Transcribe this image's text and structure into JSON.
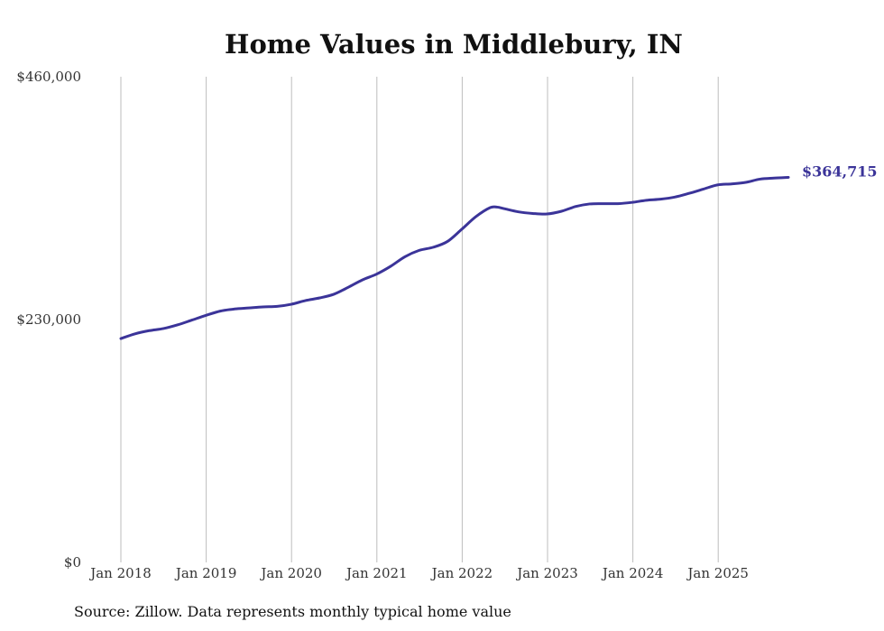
{
  "chart_data": {
    "type": "line",
    "title": "Home Values in Middlebury, IN",
    "xlabel": "",
    "ylabel": "",
    "ylim": [
      0,
      460000
    ],
    "y_ticks": [
      0,
      230000,
      460000
    ],
    "y_tick_labels": [
      "$0",
      "$230,000",
      "$460,000"
    ],
    "x_ticks": [
      2018,
      2019,
      2020,
      2021,
      2022,
      2023,
      2024,
      2025
    ],
    "x_tick_labels": [
      "Jan 2018",
      "Jan 2019",
      "Jan 2020",
      "Jan 2021",
      "Jan 2022",
      "Jan 2023",
      "Jan 2024",
      "Jan 2025"
    ],
    "xlim": [
      2018,
      2025.8333
    ],
    "grid": "vertical",
    "legend": "none",
    "series": [
      {
        "name": "Typical home value",
        "color": "#3b3499",
        "x": [
          2018.0,
          2018.1667,
          2018.3333,
          2018.5,
          2018.6667,
          2018.8333,
          2019.0,
          2019.1667,
          2019.3333,
          2019.5,
          2019.6667,
          2019.8333,
          2020.0,
          2020.1667,
          2020.3333,
          2020.5,
          2020.6667,
          2020.8333,
          2021.0,
          2021.1667,
          2021.3333,
          2021.5,
          2021.6667,
          2021.8333,
          2022.0,
          2022.1667,
          2022.3333,
          2022.4167,
          2022.5,
          2022.6667,
          2022.8333,
          2023.0,
          2023.1667,
          2023.3333,
          2023.5,
          2023.6667,
          2023.8333,
          2024.0,
          2024.1667,
          2024.3333,
          2024.5,
          2024.6667,
          2024.8333,
          2025.0,
          2025.1667,
          2025.3333,
          2025.5,
          2025.6667,
          2025.8333
        ],
        "values": [
          212000,
          216500,
          219500,
          221500,
          225000,
          229500,
          234000,
          238000,
          240000,
          241000,
          242000,
          242500,
          244500,
          248000,
          250500,
          254000,
          260500,
          267500,
          273000,
          280500,
          289500,
          295500,
          298500,
          304000,
          315500,
          327500,
          336000,
          336500,
          335000,
          332000,
          330500,
          330000,
          332500,
          337000,
          339500,
          339800,
          339800,
          341000,
          343000,
          344000,
          346000,
          349500,
          353500,
          357500,
          358500,
          360000,
          363000,
          364000,
          364715
        ]
      }
    ],
    "end_label": "$364,715",
    "source_note": "Source: Zillow. Data represents monthly typical home value"
  }
}
